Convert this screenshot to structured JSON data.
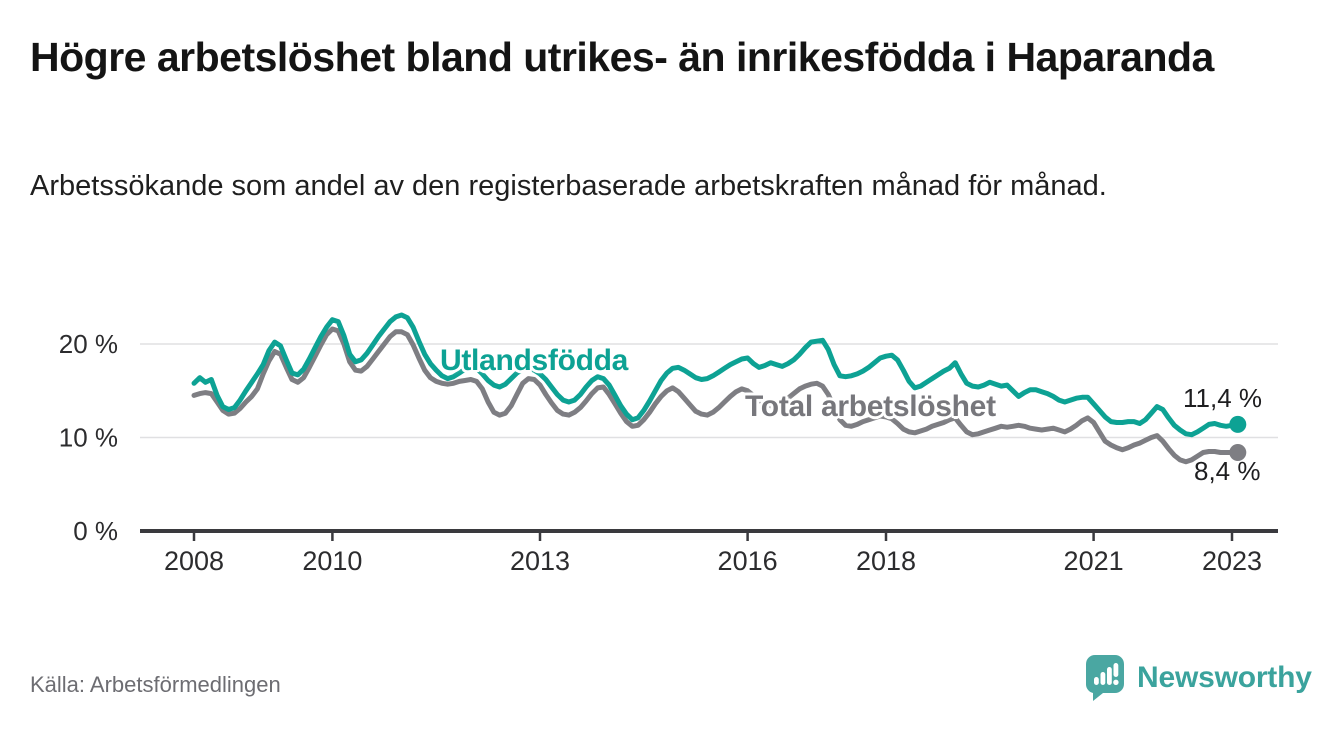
{
  "header": {
    "title": "Högre arbetslöshet bland utrikes- än inrikesfödda i Haparanda",
    "subtitle": "Arbetssökande som andel av den registerbaserade arbetskraften månad för månad."
  },
  "footer": {
    "source": "Källa: Arbetsförmedlingen",
    "brand": "Newsworthy"
  },
  "colors": {
    "title": "#141414",
    "subtitle": "#1f1f1f",
    "source_text": "#6d6d72",
    "brand_icon": "#4AA7A2",
    "brand_text": "#3BA39D",
    "series_teal": "#0DA294",
    "series_gray": "#7E7E83"
  },
  "chart_data": {
    "type": "line",
    "unit": "%",
    "frequency": "monthly",
    "x_start": "2008-01",
    "x_end": "2023-02",
    "ylim": [
      0,
      24
    ],
    "grid": "horizontal-only",
    "axis_color": "#3a3a3e",
    "axis_text_color": "#2c2c2e",
    "grid_color": "#e0e0e2",
    "y_ticks": [
      {
        "label": "0 %",
        "value": 0
      },
      {
        "label": "10 %",
        "value": 10
      },
      {
        "label": "20 %",
        "value": 20
      }
    ],
    "x_ticks": [
      {
        "label": "2008",
        "year": 2008
      },
      {
        "label": "2010",
        "year": 2010
      },
      {
        "label": "2013",
        "year": 2013
      },
      {
        "label": "2016",
        "year": 2016
      },
      {
        "label": "2018",
        "year": 2018
      },
      {
        "label": "2021",
        "year": 2021
      },
      {
        "label": "2023",
        "year": 2023
      }
    ],
    "series": [
      {
        "name": "Utlandsfödda",
        "color": "#0DA294",
        "end_label": "11,4 %",
        "end_value": 11.4,
        "values": [
          15.8,
          16.4,
          15.9,
          16.2,
          14.5,
          13.3,
          13.0,
          13.2,
          14.0,
          15.0,
          15.9,
          16.8,
          17.8,
          19.3,
          20.2,
          19.8,
          18.3,
          16.9,
          16.7,
          17.3,
          18.4,
          19.6,
          20.8,
          21.8,
          22.6,
          22.4,
          20.9,
          18.9,
          18.1,
          18.3,
          19.0,
          19.9,
          20.8,
          21.6,
          22.4,
          22.9,
          23.1,
          22.8,
          21.8,
          20.3,
          18.9,
          17.9,
          17.2,
          16.6,
          16.3,
          16.5,
          16.9,
          17.3,
          17.6,
          17.4,
          16.8,
          16.1,
          15.6,
          15.4,
          15.7,
          16.3,
          16.9,
          17.3,
          17.5,
          17.2,
          16.8,
          16.2,
          15.4,
          14.6,
          14.0,
          13.8,
          14.0,
          14.6,
          15.4,
          16.1,
          16.5,
          16.3,
          15.6,
          14.5,
          13.4,
          12.5,
          11.9,
          12.1,
          12.9,
          13.9,
          15.0,
          16.1,
          16.9,
          17.4,
          17.5,
          17.2,
          16.8,
          16.4,
          16.2,
          16.3,
          16.6,
          17.0,
          17.4,
          17.8,
          18.1,
          18.4,
          18.5,
          17.9,
          17.5,
          17.7,
          18.0,
          17.8,
          17.6,
          17.9,
          18.3,
          18.9,
          19.6,
          20.2,
          20.3,
          20.4,
          19.4,
          17.8,
          16.6,
          16.5,
          16.6,
          16.8,
          17.1,
          17.5,
          18.0,
          18.5,
          18.7,
          18.8,
          18.3,
          17.2,
          16.0,
          15.3,
          15.5,
          15.9,
          16.3,
          16.7,
          17.1,
          17.4,
          18.0,
          16.8,
          15.8,
          15.5,
          15.4,
          15.6,
          15.9,
          15.7,
          15.5,
          15.6,
          15.0,
          14.4,
          14.8,
          15.1,
          15.1,
          14.9,
          14.7,
          14.4,
          14.0,
          13.8,
          14.0,
          14.2,
          14.3,
          14.3,
          13.6,
          12.9,
          12.2,
          11.7,
          11.6,
          11.6,
          11.7,
          11.7,
          11.5,
          11.9,
          12.6,
          13.3,
          13.0,
          12.1,
          11.3,
          10.8,
          10.4,
          10.3,
          10.6,
          11.0,
          11.4,
          11.5,
          11.3,
          11.2,
          11.3,
          11.4
        ]
      },
      {
        "name": "Total arbetslöshet",
        "color": "#7E7E83",
        "end_label": "8,4 %",
        "end_value": 8.4,
        "values": [
          14.5,
          14.7,
          14.8,
          14.7,
          13.8,
          12.9,
          12.5,
          12.6,
          13.1,
          13.8,
          14.4,
          15.2,
          16.8,
          18.2,
          19.2,
          18.9,
          17.5,
          16.2,
          15.9,
          16.4,
          17.5,
          18.7,
          19.9,
          21.0,
          21.6,
          21.4,
          20.0,
          18.1,
          17.2,
          17.1,
          17.6,
          18.4,
          19.2,
          20.0,
          20.8,
          21.3,
          21.3,
          21.0,
          19.9,
          18.5,
          17.2,
          16.4,
          16.0,
          15.8,
          15.7,
          15.8,
          16.0,
          16.1,
          16.2,
          16.0,
          15.2,
          13.8,
          12.7,
          12.4,
          12.6,
          13.4,
          14.6,
          15.8,
          16.3,
          16.2,
          15.6,
          14.6,
          13.7,
          12.9,
          12.5,
          12.4,
          12.7,
          13.2,
          13.9,
          14.7,
          15.3,
          15.4,
          14.6,
          13.6,
          12.6,
          11.7,
          11.2,
          11.3,
          11.9,
          12.7,
          13.6,
          14.4,
          15.0,
          15.3,
          14.9,
          14.2,
          13.5,
          12.8,
          12.5,
          12.4,
          12.7,
          13.2,
          13.8,
          14.4,
          14.9,
          15.2,
          15.0,
          14.5,
          14.0,
          13.6,
          13.4,
          13.5,
          13.8,
          14.2,
          14.7,
          15.2,
          15.5,
          15.7,
          15.8,
          15.5,
          14.6,
          13.2,
          11.9,
          11.3,
          11.2,
          11.4,
          11.7,
          11.9,
          12.1,
          12.3,
          12.2,
          12.0,
          11.5,
          10.9,
          10.6,
          10.5,
          10.7,
          10.9,
          11.2,
          11.4,
          11.6,
          11.9,
          12.1,
          11.3,
          10.6,
          10.3,
          10.4,
          10.6,
          10.8,
          11.0,
          11.2,
          11.1,
          11.2,
          11.3,
          11.2,
          11.0,
          10.9,
          10.8,
          10.9,
          11.0,
          10.8,
          10.6,
          10.9,
          11.3,
          11.8,
          12.1,
          11.6,
          10.6,
          9.6,
          9.2,
          8.9,
          8.7,
          8.9,
          9.2,
          9.4,
          9.7,
          10.0,
          10.2,
          9.6,
          8.8,
          8.1,
          7.6,
          7.4,
          7.6,
          8.0,
          8.4,
          8.5,
          8.5,
          8.4,
          8.4,
          8.4,
          8.4
        ]
      }
    ]
  }
}
